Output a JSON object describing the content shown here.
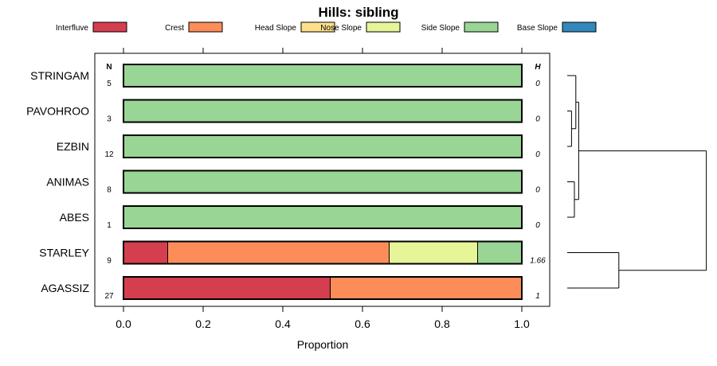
{
  "chart_data": {
    "type": "bar",
    "orientation": "horizontal-stacked",
    "title": "Hills: sibling",
    "xlabel": "Proportion",
    "ylabel": "",
    "xlim": [
      0,
      1
    ],
    "x_ticks": [
      "0.0",
      "0.2",
      "0.4",
      "0.6",
      "0.8",
      "1.0"
    ],
    "n_header": "N",
    "h_header": "H",
    "legend": [
      {
        "name": "Interfluve",
        "color": "#d53e4f"
      },
      {
        "name": "Crest",
        "color": "#fc8d59"
      },
      {
        "name": "Head Slope",
        "color": "#fee08b"
      },
      {
        "name": "Nose Slope",
        "color": "#e6f598"
      },
      {
        "name": "Side Slope",
        "color": "#99d594"
      },
      {
        "name": "Base Slope",
        "color": "#3288bd"
      }
    ],
    "categories": [
      "STRINGAM",
      "PAVOHROO",
      "EZBIN",
      "ANIMAS",
      "ABES",
      "STARLEY",
      "AGASSIZ"
    ],
    "n_values": [
      "5",
      "3",
      "12",
      "8",
      "1",
      "9",
      "27"
    ],
    "h_values": [
      "0",
      "0",
      "0",
      "0",
      "0",
      "1.66",
      "1"
    ],
    "series": [
      {
        "name": "Interfluve",
        "values": [
          0,
          0,
          0,
          0,
          0,
          0.111,
          0.519
        ]
      },
      {
        "name": "Crest",
        "values": [
          0,
          0,
          0,
          0,
          0,
          0.556,
          0.481
        ]
      },
      {
        "name": "Head Slope",
        "values": [
          0,
          0,
          0,
          0,
          0,
          0,
          0
        ]
      },
      {
        "name": "Nose Slope",
        "values": [
          0,
          0,
          0,
          0,
          0,
          0.222,
          0
        ]
      },
      {
        "name": "Side Slope",
        "values": [
          1,
          1,
          1,
          1,
          1,
          0.111,
          0
        ]
      },
      {
        "name": "Base Slope",
        "values": [
          0,
          0,
          0,
          0,
          0,
          0,
          0
        ]
      }
    ],
    "dendrogram": {
      "merges": [
        {
          "left": 1,
          "right": 2,
          "height": 0.03
        },
        {
          "left": 0,
          "right": "m0",
          "height": 0.06
        },
        {
          "left": 3,
          "right": 4,
          "height": 0.05
        },
        {
          "left": "m1",
          "right": "m2",
          "height": 0.08
        },
        {
          "left": 5,
          "right": 6,
          "height": 0.36
        },
        {
          "left": "m3",
          "right": "m4",
          "height": 0.97
        }
      ]
    }
  }
}
